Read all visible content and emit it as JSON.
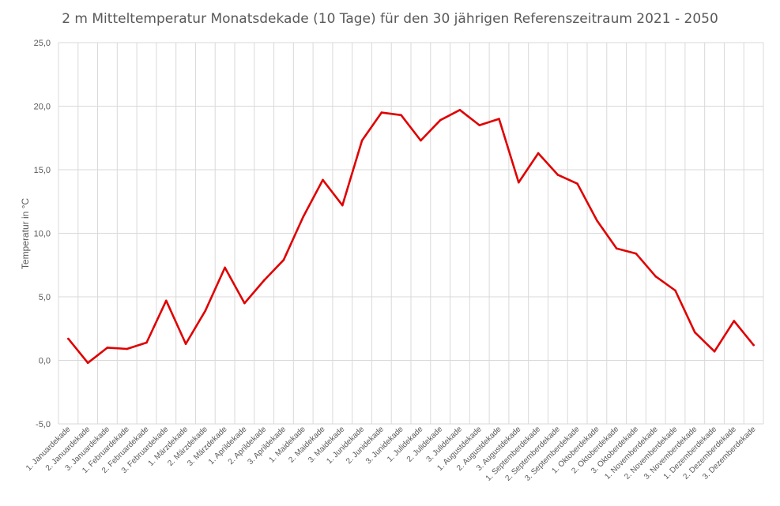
{
  "chart_data": {
    "type": "line",
    "title": "2 m Mitteltemperatur Monatsdekade (10 Tage) für den 30 jährigen Referenszeitraum 2021 - 2050",
    "ylabel": "Temperatur  in °C",
    "xlabel": "",
    "ylim": [
      -5.0,
      25.0
    ],
    "y_ticks": [
      "-5,0",
      "0,0",
      "5,0",
      "10,0",
      "15,0",
      "20,0",
      "25,0"
    ],
    "grid": true,
    "legend": "none",
    "line_color": "#e00000",
    "categories": [
      "1. Januardekade",
      "2. Januardekade",
      "3. Januardekade",
      "1. Februardekade",
      "2. Februardekade",
      "3. Februardekade",
      "1. Märzdekade",
      "2. Märzdekade",
      "3. Märzdekade",
      "1. Aprildekade",
      "2. Aprildekade",
      "3. Aprildekade",
      "1. Maidekade",
      "2. Maidekade",
      "3. Maidekade",
      "1. Junidekade",
      "2. Junidekade",
      "3. Junidekade",
      "1. Julidekade",
      "2. Julidekade",
      "3. Julidekade",
      "1. Augustdekade",
      "2. Augustdekade",
      "3. Augustdekade",
      "1. Septemberdekade",
      "2. Septemberdekade",
      "3. Septemberdekade",
      "1. Oktoberdekade",
      "2. Oktoberdekade",
      "3. Oktoberdekade",
      "1. Novemberdekade",
      "2. Novemberdekade",
      "3. Novemberdekade",
      "1. Dezemberdekade",
      "2. Dezemberdekade",
      "3. Dezemberdekade"
    ],
    "series": [
      {
        "values": [
          1.7,
          -0.2,
          1.0,
          0.9,
          1.4,
          4.7,
          1.3,
          3.9,
          7.3,
          4.5,
          6.3,
          7.9,
          11.3,
          14.2,
          12.2,
          17.3,
          19.5,
          19.3,
          17.3,
          18.9,
          19.7,
          18.5,
          19.0,
          14.0,
          16.3,
          14.6,
          13.9,
          11.0,
          8.8,
          8.4,
          6.6,
          5.5,
          2.2,
          0.7,
          3.1,
          1.2
        ]
      }
    ]
  }
}
